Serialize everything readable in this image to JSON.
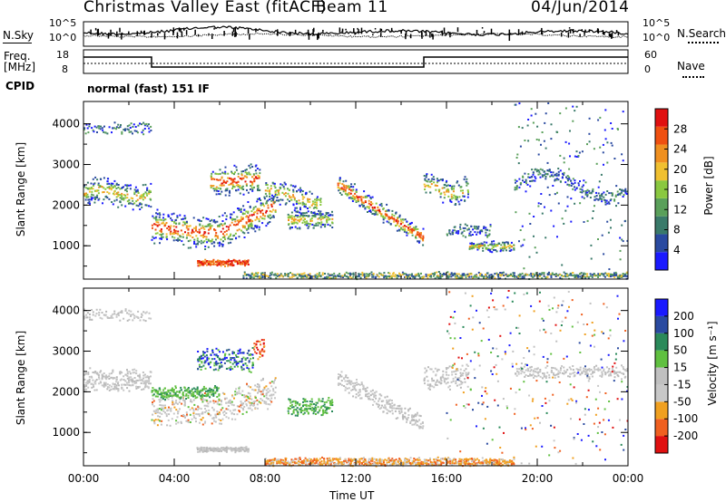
{
  "header": {
    "station": "Christmas Valley East (fitACF)",
    "beam": "Beam 11",
    "date": "04/Jun/2014"
  },
  "left_labels": {
    "nsky": "N.Sky",
    "freq_line1": "Freq.",
    "freq_line2": "[MHz]",
    "cpid": "CPID"
  },
  "right_labels": {
    "nsearch": "N.Search",
    "nave": "Nave"
  },
  "cpid_text": "normal (fast) 151 IF",
  "panels": {
    "noise": {
      "left_ticks": [
        "10^5",
        "10^0"
      ],
      "right_ticks": [
        "10^5",
        "10^0"
      ]
    },
    "freq": {
      "left_ticks": [
        "18",
        "8"
      ],
      "right_ticks": [
        "60",
        "0"
      ]
    }
  },
  "colors": {
    "power": [
      "#1a1aff",
      "#2a4aa0",
      "#3a7a6a",
      "#5aa05a",
      "#8ac840",
      "#f0c030",
      "#f09020",
      "#f05010",
      "#e01010"
    ],
    "velocity": [
      "#e01010",
      "#f06020",
      "#f0a020",
      "#c8c8c8",
      "#c0c0c0",
      "#60c040",
      "#2a8a5a",
      "#2a4aa0",
      "#1a1aff"
    ]
  },
  "chart_data": [
    {
      "type": "heatmap",
      "title": "",
      "ylabel": "Slant Range [km]",
      "xlabel": "",
      "x_ticks": [
        "00:00",
        "04:00",
        "08:00",
        "12:00",
        "16:00",
        "20:00",
        "00:00"
      ],
      "y_ticks": [
        1000,
        2000,
        3000,
        4000
      ],
      "xlim_hours": [
        0,
        24
      ],
      "ylim": [
        180,
        4550
      ],
      "colorbar": {
        "label": "Power [dB]",
        "ticks": [
          4,
          8,
          12,
          16,
          20,
          24,
          28
        ]
      }
    },
    {
      "type": "heatmap",
      "title": "",
      "ylabel": "Slant Range [km]",
      "xlabel": "Time UT",
      "x_ticks": [
        "00:00",
        "04:00",
        "08:00",
        "12:00",
        "16:00",
        "20:00",
        "00:00"
      ],
      "y_ticks": [
        1000,
        2000,
        3000,
        4000
      ],
      "xlim_hours": [
        0,
        24
      ],
      "ylim": [
        180,
        4550
      ],
      "colorbar": {
        "label": "Velocity [m s⁻¹]",
        "ticks": [
          200,
          100,
          50,
          15,
          -15,
          -50,
          -100,
          -200
        ]
      }
    }
  ]
}
